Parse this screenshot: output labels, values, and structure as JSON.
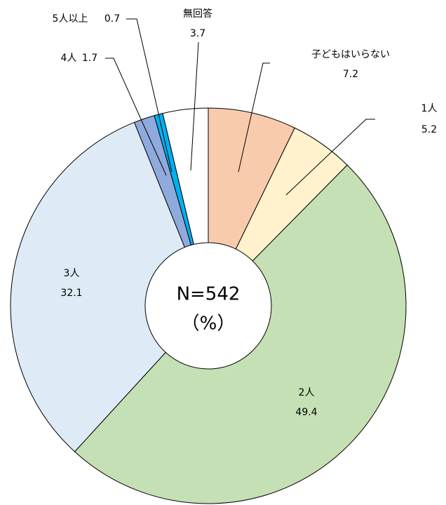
{
  "chart_data": {
    "type": "donut",
    "center_text": [
      "N=542",
      "（%）"
    ],
    "categories": [
      "子どもはいらない",
      "1人",
      "2人",
      "3人",
      "4人",
      "5人以上",
      "無回答"
    ],
    "values": [
      7.2,
      5.2,
      49.4,
      32.1,
      1.7,
      0.7,
      3.7
    ],
    "colors": [
      "#f8cbad",
      "#fff2cc",
      "#c5e0b4",
      "#deebf7",
      "#8faadc",
      "#00b0f0",
      "#ffffff"
    ]
  }
}
